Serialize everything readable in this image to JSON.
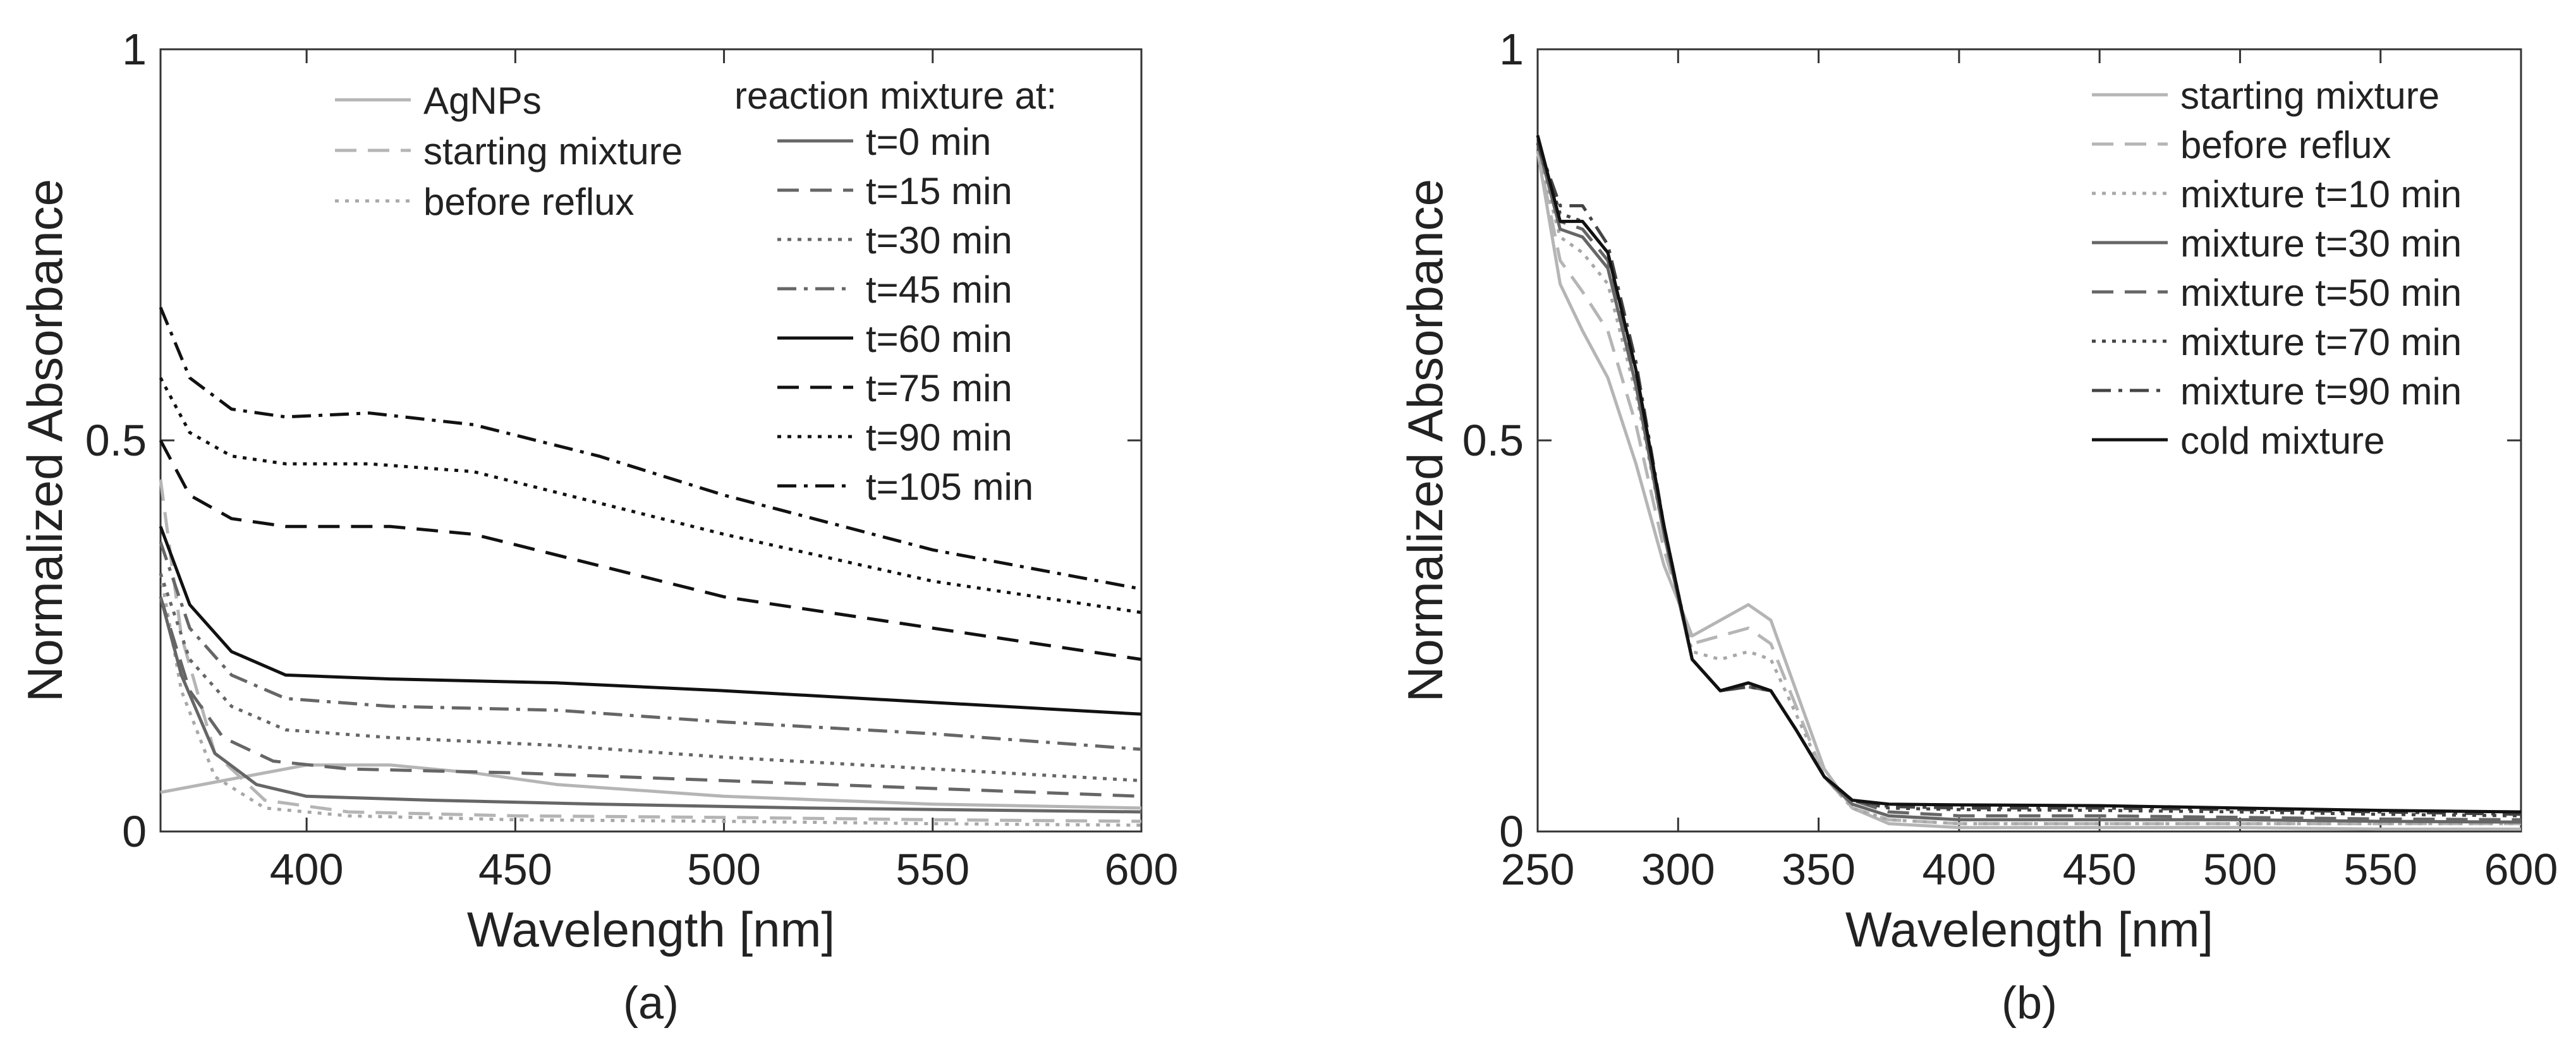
{
  "figure": {
    "panel_a_caption": "(a)",
    "panel_b_caption": "(b)"
  },
  "chart_data": [
    {
      "type": "line",
      "panel": "a",
      "xlabel": "Wavelength [nm]",
      "ylabel": "Normalized Absorbance",
      "xlim": [
        365,
        600
      ],
      "ylim": [
        0,
        1
      ],
      "xticks": [
        400,
        450,
        500,
        550,
        600
      ],
      "yticks": [
        0,
        0.5,
        1
      ],
      "ytick_labels": [
        "0",
        "0.5",
        "1"
      ],
      "legend_left": [
        "AgNPs",
        "starting mixture",
        "before reflux"
      ],
      "legend_right_title": "reaction mixture at:",
      "legend_right": [
        "t=0 min",
        "t=15 min",
        "t=30 min",
        "t=45 min",
        "t=60 min",
        "t=75 min",
        "t=90 min",
        "t=105 min"
      ],
      "series": [
        {
          "name": "AgNPs",
          "color": "#b5b5b5",
          "dash": "solid",
          "x": [
            365,
            380,
            400,
            420,
            440,
            460,
            500,
            550,
            600
          ],
          "y": [
            0.05,
            0.065,
            0.085,
            0.085,
            0.075,
            0.06,
            0.045,
            0.035,
            0.03
          ]
        },
        {
          "name": "starting mixture",
          "color": "#b5b5b5",
          "dash": "dash",
          "x": [
            365,
            370,
            378,
            390,
            410,
            450,
            500,
            550,
            600
          ],
          "y": [
            0.45,
            0.25,
            0.1,
            0.04,
            0.025,
            0.02,
            0.018,
            0.015,
            0.013
          ]
        },
        {
          "name": "before reflux",
          "color": "#a8a8a8",
          "dash": "dot",
          "x": [
            365,
            370,
            378,
            390,
            410,
            450,
            500,
            550,
            600
          ],
          "y": [
            0.33,
            0.18,
            0.07,
            0.03,
            0.02,
            0.015,
            0.013,
            0.01,
            0.008
          ]
        },
        {
          "name": "t=0 min",
          "color": "#666666",
          "dash": "solid",
          "x": [
            365,
            370,
            378,
            388,
            400,
            430,
            470,
            520,
            600
          ],
          "y": [
            0.3,
            0.2,
            0.1,
            0.06,
            0.045,
            0.04,
            0.035,
            0.03,
            0.025
          ]
        },
        {
          "name": "t=15 min",
          "color": "#666666",
          "dash": "dash",
          "x": [
            365,
            372,
            380,
            392,
            410,
            450,
            500,
            550,
            600
          ],
          "y": [
            0.3,
            0.18,
            0.12,
            0.09,
            0.08,
            0.075,
            0.065,
            0.055,
            0.045
          ]
        },
        {
          "name": "t=30 min",
          "color": "#666666",
          "dash": "dot",
          "x": [
            365,
            372,
            382,
            395,
            420,
            460,
            500,
            550,
            600
          ],
          "y": [
            0.33,
            0.22,
            0.16,
            0.13,
            0.12,
            0.11,
            0.095,
            0.08,
            0.065
          ]
        },
        {
          "name": "t=45 min",
          "color": "#666666",
          "dash": "dashdot",
          "x": [
            365,
            372,
            382,
            395,
            420,
            460,
            500,
            550,
            600
          ],
          "y": [
            0.37,
            0.26,
            0.2,
            0.17,
            0.16,
            0.155,
            0.14,
            0.125,
            0.105
          ]
        },
        {
          "name": "t=60 min",
          "color": "#111111",
          "dash": "solid",
          "x": [
            365,
            372,
            382,
            395,
            420,
            460,
            500,
            550,
            600
          ],
          "y": [
            0.39,
            0.29,
            0.23,
            0.2,
            0.195,
            0.19,
            0.18,
            0.165,
            0.15
          ]
        },
        {
          "name": "t=75 min",
          "color": "#111111",
          "dash": "dash",
          "x": [
            365,
            372,
            382,
            395,
            420,
            440,
            470,
            500,
            550,
            600
          ],
          "y": [
            0.5,
            0.43,
            0.4,
            0.39,
            0.39,
            0.38,
            0.34,
            0.3,
            0.26,
            0.22
          ]
        },
        {
          "name": "t=90 min",
          "color": "#111111",
          "dash": "dot",
          "x": [
            365,
            372,
            382,
            395,
            415,
            440,
            470,
            500,
            550,
            600
          ],
          "y": [
            0.58,
            0.51,
            0.48,
            0.47,
            0.47,
            0.46,
            0.42,
            0.38,
            0.32,
            0.28
          ]
        },
        {
          "name": "t=105 min",
          "color": "#111111",
          "dash": "dashdot",
          "x": [
            365,
            372,
            382,
            395,
            415,
            440,
            470,
            500,
            550,
            600
          ],
          "y": [
            0.67,
            0.58,
            0.54,
            0.53,
            0.535,
            0.52,
            0.48,
            0.43,
            0.36,
            0.31
          ]
        }
      ]
    },
    {
      "type": "line",
      "panel": "b",
      "xlabel": "Wavelength [nm]",
      "ylabel": "Normalized Absorbance",
      "xlim": [
        250,
        600
      ],
      "ylim": [
        0,
        1
      ],
      "xticks": [
        250,
        300,
        350,
        400,
        450,
        500,
        550,
        600
      ],
      "yticks": [
        0,
        0.5,
        1
      ],
      "ytick_labels": [
        "0",
        "0.5",
        "1"
      ],
      "legend": [
        "starting mixture",
        "before reflux",
        "mixture t=10 min",
        "mixture t=30 min",
        "mixture t=50 min",
        "mixture t=70 min",
        "mixture t=90 min",
        "cold mixture"
      ],
      "series": [
        {
          "name": "starting mixture",
          "color": "#b5b5b5",
          "dash": "solid",
          "x": [
            250,
            258,
            266,
            275,
            285,
            295,
            305,
            315,
            325,
            333,
            342,
            352,
            362,
            375,
            400,
            450,
            500,
            550,
            600
          ],
          "y": [
            0.87,
            0.7,
            0.64,
            0.58,
            0.47,
            0.34,
            0.25,
            0.27,
            0.29,
            0.27,
            0.18,
            0.08,
            0.03,
            0.01,
            0.005,
            0.005,
            0.005,
            0.003,
            0.003
          ]
        },
        {
          "name": "before reflux",
          "color": "#b5b5b5",
          "dash": "dash",
          "x": [
            250,
            258,
            266,
            275,
            285,
            295,
            305,
            315,
            325,
            333,
            342,
            352,
            362,
            375,
            400,
            450,
            500,
            550,
            600
          ],
          "y": [
            0.87,
            0.73,
            0.69,
            0.64,
            0.52,
            0.36,
            0.24,
            0.25,
            0.26,
            0.24,
            0.16,
            0.07,
            0.03,
            0.015,
            0.01,
            0.01,
            0.01,
            0.01,
            0.01
          ]
        },
        {
          "name": "mixture t=10 min",
          "color": "#a8a8a8",
          "dash": "dot",
          "x": [
            250,
            258,
            266,
            275,
            285,
            295,
            305,
            315,
            325,
            333,
            342,
            352,
            362,
            375,
            400,
            450,
            500,
            550,
            600
          ],
          "y": [
            0.87,
            0.76,
            0.74,
            0.7,
            0.56,
            0.38,
            0.23,
            0.22,
            0.23,
            0.22,
            0.15,
            0.07,
            0.03,
            0.015,
            0.01,
            0.01,
            0.01,
            0.01,
            0.01
          ]
        },
        {
          "name": "mixture t=30 min",
          "color": "#666666",
          "dash": "solid",
          "x": [
            250,
            258,
            266,
            275,
            285,
            295,
            305,
            315,
            325,
            333,
            342,
            352,
            362,
            375,
            400,
            450,
            500,
            550,
            600
          ],
          "y": [
            0.88,
            0.77,
            0.76,
            0.72,
            0.57,
            0.38,
            0.22,
            0.18,
            0.19,
            0.18,
            0.13,
            0.07,
            0.035,
            0.02,
            0.015,
            0.015,
            0.015,
            0.013,
            0.012
          ]
        },
        {
          "name": "mixture t=50 min",
          "color": "#666666",
          "dash": "dash",
          "x": [
            250,
            258,
            266,
            275,
            285,
            295,
            305,
            315,
            325,
            333,
            342,
            352,
            362,
            375,
            400,
            450,
            500,
            550,
            600
          ],
          "y": [
            0.88,
            0.78,
            0.77,
            0.73,
            0.58,
            0.38,
            0.22,
            0.18,
            0.185,
            0.18,
            0.13,
            0.07,
            0.04,
            0.025,
            0.02,
            0.02,
            0.018,
            0.016,
            0.015
          ]
        },
        {
          "name": "mixture t=70 min",
          "color": "#444444",
          "dash": "dot",
          "x": [
            250,
            258,
            266,
            275,
            285,
            295,
            305,
            315,
            325,
            333,
            342,
            352,
            362,
            375,
            400,
            450,
            500,
            550,
            600
          ],
          "y": [
            0.88,
            0.79,
            0.78,
            0.74,
            0.59,
            0.39,
            0.22,
            0.18,
            0.185,
            0.18,
            0.13,
            0.07,
            0.04,
            0.03,
            0.028,
            0.027,
            0.025,
            0.022,
            0.02
          ]
        },
        {
          "name": "mixture t=90 min",
          "color": "#444444",
          "dash": "dashdot",
          "x": [
            250,
            258,
            266,
            275,
            285,
            295,
            305,
            315,
            325,
            333,
            342,
            352,
            362,
            375,
            400,
            450,
            500,
            550,
            600
          ],
          "y": [
            0.88,
            0.8,
            0.8,
            0.75,
            0.6,
            0.39,
            0.22,
            0.18,
            0.185,
            0.18,
            0.13,
            0.07,
            0.04,
            0.032,
            0.03,
            0.03,
            0.028,
            0.025,
            0.022
          ]
        },
        {
          "name": "cold mixture",
          "color": "#111111",
          "dash": "solid",
          "x": [
            250,
            258,
            266,
            275,
            285,
            295,
            305,
            315,
            325,
            333,
            342,
            352,
            362,
            375,
            400,
            450,
            500,
            550,
            600
          ],
          "y": [
            0.89,
            0.78,
            0.78,
            0.74,
            0.59,
            0.39,
            0.22,
            0.18,
            0.19,
            0.18,
            0.13,
            0.07,
            0.04,
            0.035,
            0.034,
            0.033,
            0.03,
            0.027,
            0.025
          ]
        }
      ]
    }
  ]
}
